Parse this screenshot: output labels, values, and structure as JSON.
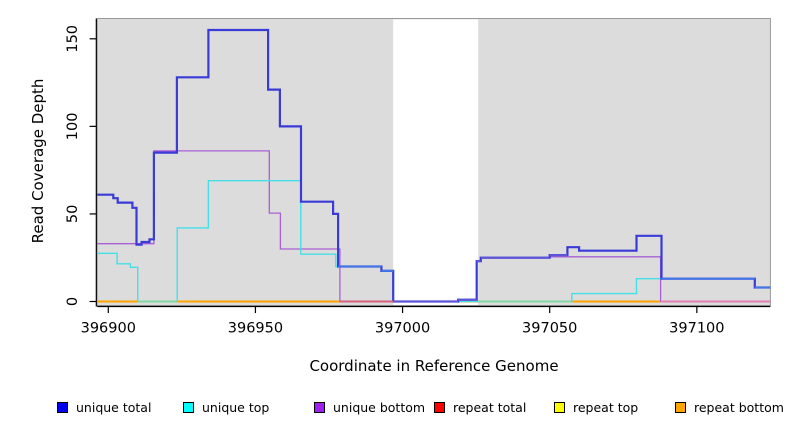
{
  "chart_data": {
    "type": "line",
    "subtype": "step-coverage",
    "title": "",
    "xlabel": "Coordinate in Reference Genome",
    "ylabel": "Read Coverage Depth",
    "x_ticks": [
      396900,
      396950,
      397000,
      397050,
      397100
    ],
    "y_ticks": [
      0,
      50,
      100,
      150
    ],
    "xlim": [
      396896.2,
      397125
    ],
    "ylim": [
      -2.3,
      161.6
    ],
    "grid": "off",
    "legend_position": "bottom",
    "background": {
      "plot_fill": "#dcdcdc",
      "border_color": "#999999",
      "gap_region": {
        "start": 396996.8,
        "end": 397025.7,
        "fill": "#ffffff"
      }
    },
    "series": [
      {
        "name": "unique total",
        "color": "#3a3ad6",
        "width": 2.2,
        "end": 397125,
        "steps": [
          [
            396896.2,
            61
          ],
          [
            396901.7,
            59
          ],
          [
            396903.2,
            56.5
          ],
          [
            396908.2,
            53.5
          ],
          [
            396909.6,
            32.5
          ],
          [
            396911.3,
            34
          ],
          [
            396914,
            35.5
          ],
          [
            396915.5,
            85
          ],
          [
            396923.3,
            128
          ],
          [
            396934,
            155
          ],
          [
            396954.3,
            121
          ],
          [
            396958.3,
            100
          ],
          [
            396965.5,
            57
          ],
          [
            396976.4,
            50
          ],
          [
            396978.1,
            20
          ],
          [
            396992.8,
            17.5
          ],
          [
            396996.8,
            0
          ],
          [
            397018.9,
            1
          ],
          [
            397025.2,
            23
          ],
          [
            397026.6,
            25
          ],
          [
            397050,
            26.5
          ],
          [
            397056,
            31
          ],
          [
            397060,
            29
          ],
          [
            397079.5,
            37.5
          ],
          [
            397088,
            13
          ],
          [
            397119.7,
            8
          ]
        ]
      },
      {
        "name": "unique top",
        "color": "#45dfe8",
        "width": 1.4,
        "end": 397125,
        "steps": [
          [
            396896.2,
            27.5
          ],
          [
            396903,
            21.5
          ],
          [
            396907.5,
            19.5
          ],
          [
            396910,
            0
          ],
          [
            396923.4,
            42
          ],
          [
            396934,
            69
          ],
          [
            396965.4,
            27
          ],
          [
            396977.3,
            20
          ],
          [
            396992.8,
            17.5
          ],
          [
            396996.8,
            0
          ],
          [
            397057.5,
            4.5
          ],
          [
            397079.5,
            13
          ],
          [
            397119.7,
            8
          ]
        ]
      },
      {
        "name": "unique bottom",
        "color": "#a95fd6",
        "width": 1.3,
        "end": 397125,
        "steps": [
          [
            396896.2,
            33
          ],
          [
            396915.5,
            86
          ],
          [
            396954.7,
            50.5
          ],
          [
            396958.5,
            30
          ],
          [
            396978.7,
            0
          ],
          [
            397018.9,
            1
          ],
          [
            397025.2,
            23
          ],
          [
            397026.6,
            25
          ],
          [
            397050,
            25.5
          ],
          [
            397087.7,
            0
          ]
        ]
      },
      {
        "name": "repeat total",
        "color": "#ff0000",
        "width": 1.2,
        "end": 397125,
        "steps": [
          [
            396896.2,
            0
          ]
        ]
      },
      {
        "name": "repeat top",
        "color": "#ffff00",
        "width": 1.2,
        "end": 397125,
        "steps": [
          [
            396896.2,
            0
          ]
        ]
      },
      {
        "name": "repeat bottom",
        "color": "#ffa500",
        "width": 2,
        "end": 397125,
        "steps": [
          [
            396896.2,
            0
          ]
        ]
      }
    ],
    "overlap_segments": [
      {
        "x1": 396910,
        "x2": 396923.4,
        "value": 0,
        "color": "#84d8a4"
      },
      {
        "x1": 397025.9,
        "x2": 397057.5,
        "value": 0,
        "color": "#84d8a4"
      },
      {
        "x1": 396978.7,
        "x2": 396996.8,
        "value": 0,
        "color": "#d4607c"
      },
      {
        "x1": 397087.7,
        "x2": 397125,
        "value": 0,
        "color": "#e07fb0"
      },
      {
        "x1": 396996.8,
        "x2": 397018.9,
        "value": 0,
        "color": "#6054d8"
      },
      {
        "x1": 397018.9,
        "x2": 397025.2,
        "value": 1,
        "color": "#6054d8"
      },
      {
        "x1": 397025.2,
        "x2": 397026.6,
        "value": 23,
        "color": "#6054d8"
      },
      {
        "x1": 397026.6,
        "x2": 397050,
        "value": 25,
        "color": "#6054d8"
      },
      {
        "x1": 397050,
        "x2": 397056,
        "value": 26.5,
        "color": "#6054d8"
      },
      {
        "x1": 396978.1,
        "x2": 396992.8,
        "value": 20,
        "color": "#4377e8"
      },
      {
        "x1": 396992.8,
        "x2": 396996.8,
        "value": 17.5,
        "color": "#4377e8"
      },
      {
        "x1": 397088,
        "x2": 397119.7,
        "value": 13,
        "color": "#4377e8"
      },
      {
        "x1": 397119.7,
        "x2": 397125,
        "value": 8,
        "color": "#4377e8"
      }
    ]
  },
  "legend": {
    "items": [
      {
        "label": "unique total",
        "color": "#0000ee"
      },
      {
        "label": "unique top",
        "color": "#00ffff"
      },
      {
        "label": "unique bottom",
        "color": "#a020f0"
      },
      {
        "label": "repeat total",
        "color": "#ff0000"
      },
      {
        "label": "repeat top",
        "color": "#ffff00"
      },
      {
        "label": "repeat bottom",
        "color": "#ffa500"
      }
    ]
  }
}
